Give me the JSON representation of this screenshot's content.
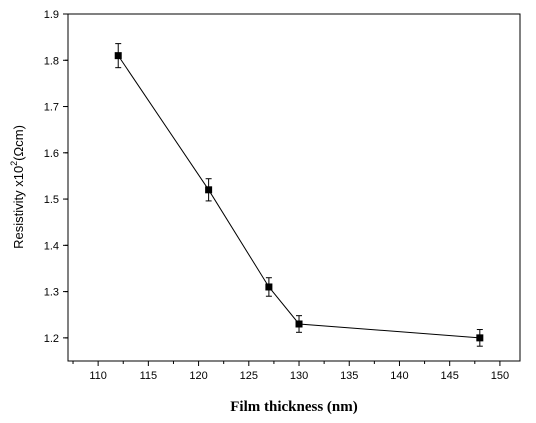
{
  "chart_data": {
    "type": "scatter",
    "title": "",
    "xlabel": "Film thickness (nm)",
    "ylabel": {
      "base": "Resistivity x10",
      "exponent": "2",
      "unit": "(Ωcm)"
    },
    "xlim": [
      107,
      152
    ],
    "ylim": [
      1.15,
      1.9
    ],
    "x_ticks": [
      110,
      115,
      120,
      125,
      130,
      135,
      140,
      145,
      150
    ],
    "y_ticks": [
      1.2,
      1.3,
      1.4,
      1.5,
      1.6,
      1.7,
      1.8,
      1.9
    ],
    "x_tick_labels": [
      "110",
      "115",
      "120",
      "125",
      "130",
      "135",
      "140",
      "145",
      "150"
    ],
    "y_tick_labels": [
      "1.2",
      "1.3",
      "1.4",
      "1.5",
      "1.6",
      "1.7",
      "1.8",
      "1.9"
    ],
    "grid": false,
    "legend": "none",
    "series": [
      {
        "x": [
          112,
          121,
          127,
          130,
          148
        ],
        "y": [
          1.81,
          1.52,
          1.31,
          1.23,
          1.2
        ],
        "error": [
          0.026,
          0.024,
          0.02,
          0.018,
          0.018
        ],
        "marker": "square",
        "line": true,
        "color": "#000000"
      }
    ]
  }
}
